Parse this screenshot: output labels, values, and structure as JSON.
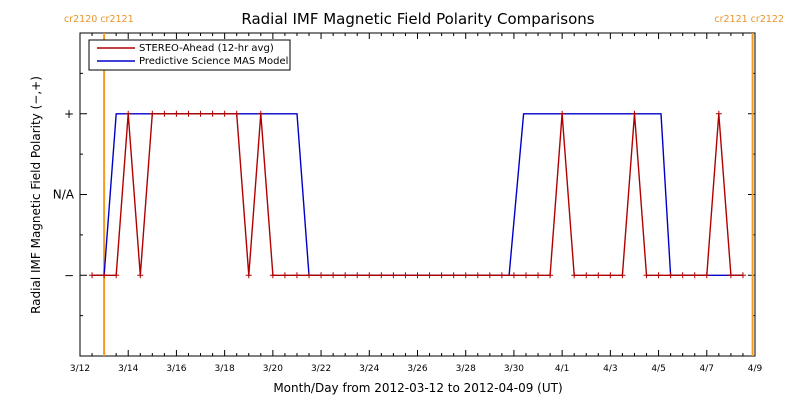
{
  "chart_data": {
    "type": "line",
    "title": "Radial IMF Magnetic Field Polarity Comparisons",
    "xlabel": "Month/Day from 2012-03-12 to 2012-04-09 (UT)",
    "ylabel": "Radial IMF Magnetic Field Polarity (−,+)",
    "x_start": "2012-03-12",
    "x_end": "2012-04-09",
    "xlim": [
      0,
      28
    ],
    "ylim": [
      -2,
      2
    ],
    "x_ticks": [
      {
        "value": 0,
        "label": "3/12"
      },
      {
        "value": 2,
        "label": "3/14"
      },
      {
        "value": 4,
        "label": "3/16"
      },
      {
        "value": 6,
        "label": "3/18"
      },
      {
        "value": 8,
        "label": "3/20"
      },
      {
        "value": 10,
        "label": "3/22"
      },
      {
        "value": 12,
        "label": "3/24"
      },
      {
        "value": 14,
        "label": "3/26"
      },
      {
        "value": 16,
        "label": "3/28"
      },
      {
        "value": 18,
        "label": "3/30"
      },
      {
        "value": 20,
        "label": "4/1"
      },
      {
        "value": 22,
        "label": "4/3"
      },
      {
        "value": 24,
        "label": "4/5"
      },
      {
        "value": 26,
        "label": "4/7"
      },
      {
        "value": 28,
        "label": "4/9"
      }
    ],
    "y_ticks": [
      {
        "value": 1,
        "label": "+"
      },
      {
        "value": 0,
        "label": "N/A"
      },
      {
        "value": -1,
        "label": "−"
      }
    ],
    "carrington_markers": [
      {
        "x": 1.0,
        "label": "cr2120 cr2121",
        "color": "#f39c22"
      },
      {
        "x": 27.9,
        "label": "cr2121 cr2122",
        "color": "#f39c22"
      }
    ],
    "legend_position": "top-left",
    "series": [
      {
        "name": "STEREO-Ahead (12-hr avg)",
        "color": "#b00000",
        "markers": true,
        "x": [
          0.5,
          1.0,
          1.5,
          2.0,
          2.5,
          3.0,
          3.5,
          4.0,
          4.5,
          5.0,
          5.5,
          6.0,
          6.5,
          7.0,
          7.5,
          8.0,
          8.5,
          9.0,
          9.5,
          10.0,
          10.5,
          11.0,
          11.5,
          12.0,
          12.5,
          13.0,
          13.5,
          14.0,
          14.5,
          15.0,
          15.5,
          16.0,
          16.5,
          17.0,
          17.5,
          18.0,
          18.5,
          19.0,
          19.5,
          20.0,
          20.5,
          21.0,
          21.5,
          22.0,
          22.5,
          23.0,
          23.5,
          24.0,
          24.5,
          25.0,
          25.5,
          26.0,
          26.5,
          27.0,
          27.5
        ],
        "y": [
          -1,
          -1,
          -1,
          1,
          -1,
          1,
          1,
          1,
          1,
          1,
          1,
          1,
          1,
          -1,
          1,
          -1,
          -1,
          -1,
          -1,
          -1,
          -1,
          -1,
          -1,
          -1,
          -1,
          -1,
          -1,
          -1,
          -1,
          -1,
          -1,
          -1,
          -1,
          -1,
          -1,
          -1,
          -1,
          -1,
          -1,
          1,
          -1,
          -1,
          -1,
          -1,
          -1,
          1,
          -1,
          -1,
          -1,
          -1,
          -1,
          -1,
          1,
          -1,
          -1
        ]
      },
      {
        "name": "Predictive Science MAS Model",
        "color": "#0000c8",
        "markers": false,
        "x": [
          0.5,
          1.0,
          1.5,
          9.0,
          9.5,
          17.8,
          18.4,
          24.1,
          24.5,
          27.5
        ],
        "y": [
          -1,
          -1,
          1,
          1,
          -1,
          -1,
          1,
          1,
          -1,
          -1
        ]
      }
    ]
  }
}
